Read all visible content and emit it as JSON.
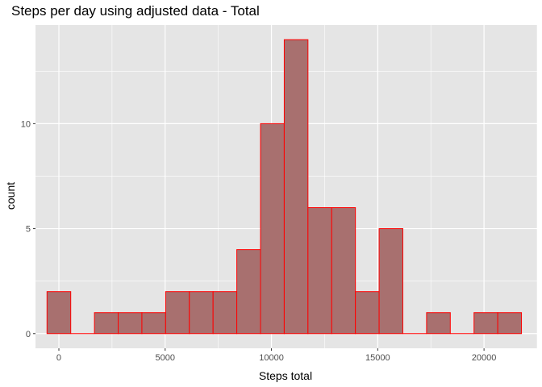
{
  "chart_data": {
    "type": "bar",
    "title": "Steps per day using adjusted data - Total",
    "xlabel": "Steps total",
    "ylabel": "count",
    "xlim": [
      -1100,
      22500
    ],
    "ylim": [
      -0.7,
      14.7
    ],
    "x_ticks": [
      0,
      5000,
      10000,
      15000,
      20000
    ],
    "x_tick_labels": [
      "0",
      "5000",
      "10000",
      "15000",
      "20000"
    ],
    "y_ticks": [
      0,
      5,
      10
    ],
    "y_tick_labels": [
      "0",
      "5",
      "10"
    ],
    "grid": true,
    "bins": [
      {
        "start": -558,
        "end": 558,
        "count": 2
      },
      {
        "start": 558,
        "end": 1674,
        "count": 0
      },
      {
        "start": 1674,
        "end": 2790,
        "count": 1
      },
      {
        "start": 2790,
        "end": 3906,
        "count": 1
      },
      {
        "start": 3906,
        "end": 5022,
        "count": 1
      },
      {
        "start": 5022,
        "end": 6138,
        "count": 2
      },
      {
        "start": 6138,
        "end": 7254,
        "count": 2
      },
      {
        "start": 7254,
        "end": 8370,
        "count": 2
      },
      {
        "start": 8370,
        "end": 9486,
        "count": 4
      },
      {
        "start": 9486,
        "end": 10602,
        "count": 10
      },
      {
        "start": 10602,
        "end": 11718,
        "count": 14
      },
      {
        "start": 11718,
        "end": 12834,
        "count": 6
      },
      {
        "start": 12834,
        "end": 13950,
        "count": 6
      },
      {
        "start": 13950,
        "end": 15066,
        "count": 2
      },
      {
        "start": 15066,
        "end": 16182,
        "count": 5
      },
      {
        "start": 16182,
        "end": 17298,
        "count": 0
      },
      {
        "start": 17298,
        "end": 18414,
        "count": 1
      },
      {
        "start": 18414,
        "end": 19530,
        "count": 0
      },
      {
        "start": 19530,
        "end": 20646,
        "count": 1
      },
      {
        "start": 20646,
        "end": 21762,
        "count": 1
      }
    ],
    "colors": {
      "panel": "#e5e5e5",
      "grid": "#ffffff",
      "bar_fill": "#a8706f",
      "bar_stroke": "#ff0000"
    }
  }
}
